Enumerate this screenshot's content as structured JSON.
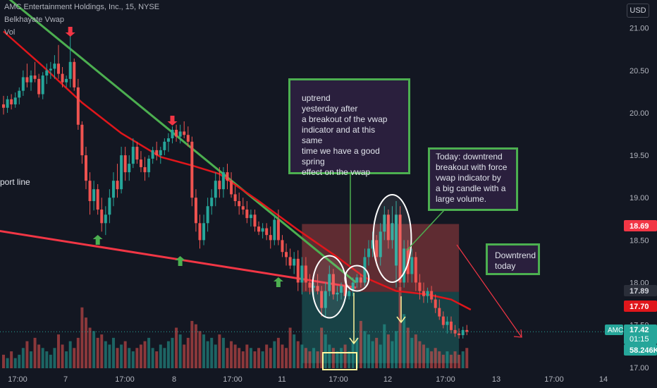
{
  "header": {
    "title": "AMC Entertainment Holdings, Inc., 15, NYSE",
    "indicator_1": "Belkhayate Vwap",
    "indicator_2": "Vol",
    "currency": "USD"
  },
  "annotations": {
    "support_label": "port line",
    "note_uptrend": "uptrend\nyesterday after\na breakout of the vwap\nindicator and at this same\ntime we have a good spring\neffect on the vwap",
    "note_today": "Today: downtrend\nbreakout with force\nvwap indicator by\na big candle with a\nlarge volume.",
    "note_downtrend": "Downtrend\ntoday"
  },
  "price_tags": {
    "target": "18.69",
    "entry": "17.89",
    "vwap": "17.70",
    "symbol": "AMC",
    "last": "17.42",
    "countdown": "01:15",
    "volume": "58.246K"
  },
  "colors": {
    "up": "#26a69a",
    "down": "#ef5350",
    "vwap": "#e0161b",
    "trendline_green": "#4caf50",
    "support_red": "#f23645",
    "note_border": "#4caf50"
  },
  "chart_data": {
    "type": "candlestick",
    "title": "AMC Entertainment Holdings, Inc., 15, NYSE",
    "y_ticks": [
      21.0,
      20.5,
      20.0,
      19.5,
      19.0,
      18.5,
      18.0,
      17.5,
      17.0
    ],
    "ylim": [
      16.94,
      21.33
    ],
    "x_tick_labels": [
      "17:00",
      "7",
      "17:00",
      "8",
      "17:00",
      "11",
      "17:00",
      "12",
      "17:00",
      "13",
      "17:00",
      "14"
    ],
    "grid": false,
    "candles": [
      {
        "o": 20.1,
        "h": 20.2,
        "l": 19.98,
        "c": 20.06
      },
      {
        "o": 20.06,
        "h": 20.2,
        "l": 20.0,
        "c": 20.16
      },
      {
        "o": 20.16,
        "h": 20.22,
        "l": 20.04,
        "c": 20.1
      },
      {
        "o": 20.1,
        "h": 20.24,
        "l": 20.06,
        "c": 20.18
      },
      {
        "o": 20.18,
        "h": 20.3,
        "l": 20.1,
        "c": 20.26
      },
      {
        "o": 20.26,
        "h": 20.5,
        "l": 20.2,
        "c": 20.42
      },
      {
        "o": 20.42,
        "h": 20.58,
        "l": 20.3,
        "c": 20.36
      },
      {
        "o": 20.36,
        "h": 20.5,
        "l": 20.26,
        "c": 20.44
      },
      {
        "o": 20.44,
        "h": 20.6,
        "l": 20.36,
        "c": 20.4
      },
      {
        "o": 20.4,
        "h": 20.46,
        "l": 20.18,
        "c": 20.22
      },
      {
        "o": 20.22,
        "h": 20.48,
        "l": 20.16,
        "c": 20.44
      },
      {
        "o": 20.44,
        "h": 20.58,
        "l": 20.34,
        "c": 20.5
      },
      {
        "o": 20.5,
        "h": 20.6,
        "l": 20.4,
        "c": 20.52
      },
      {
        "o": 20.52,
        "h": 20.68,
        "l": 20.4,
        "c": 20.58
      },
      {
        "o": 20.58,
        "h": 20.8,
        "l": 20.4,
        "c": 20.46
      },
      {
        "o": 20.46,
        "h": 20.54,
        "l": 20.3,
        "c": 20.36
      },
      {
        "o": 20.36,
        "h": 20.44,
        "l": 20.3,
        "c": 20.4
      },
      {
        "o": 20.4,
        "h": 20.94,
        "l": 20.3,
        "c": 20.6
      },
      {
        "o": 20.6,
        "h": 20.64,
        "l": 20.26,
        "c": 20.3
      },
      {
        "o": 20.3,
        "h": 20.4,
        "l": 19.8,
        "c": 19.86
      },
      {
        "o": 19.86,
        "h": 19.9,
        "l": 19.4,
        "c": 19.5
      },
      {
        "o": 19.5,
        "h": 19.6,
        "l": 19.1,
        "c": 19.2
      },
      {
        "o": 19.2,
        "h": 19.3,
        "l": 18.8,
        "c": 18.96
      },
      {
        "o": 18.96,
        "h": 19.2,
        "l": 18.85,
        "c": 19.1
      },
      {
        "o": 19.1,
        "h": 19.16,
        "l": 18.8,
        "c": 18.86
      },
      {
        "o": 18.86,
        "h": 19.0,
        "l": 18.6,
        "c": 18.7
      },
      {
        "o": 18.7,
        "h": 18.9,
        "l": 18.56,
        "c": 18.8
      },
      {
        "o": 18.8,
        "h": 19.1,
        "l": 18.7,
        "c": 19.0
      },
      {
        "o": 19.0,
        "h": 19.3,
        "l": 18.9,
        "c": 19.2
      },
      {
        "o": 19.2,
        "h": 19.4,
        "l": 19.0,
        "c": 19.1
      },
      {
        "o": 19.1,
        "h": 19.6,
        "l": 19.05,
        "c": 19.5
      },
      {
        "o": 19.5,
        "h": 19.6,
        "l": 19.2,
        "c": 19.3
      },
      {
        "o": 19.3,
        "h": 19.5,
        "l": 19.2,
        "c": 19.4
      },
      {
        "o": 19.4,
        "h": 19.7,
        "l": 19.35,
        "c": 19.6
      },
      {
        "o": 19.6,
        "h": 19.66,
        "l": 19.4,
        "c": 19.45
      },
      {
        "o": 19.45,
        "h": 19.55,
        "l": 19.3,
        "c": 19.36
      },
      {
        "o": 19.36,
        "h": 19.48,
        "l": 19.2,
        "c": 19.3
      },
      {
        "o": 19.3,
        "h": 19.5,
        "l": 19.24,
        "c": 19.46
      },
      {
        "o": 19.46,
        "h": 19.6,
        "l": 19.4,
        "c": 19.56
      },
      {
        "o": 19.56,
        "h": 19.66,
        "l": 19.44,
        "c": 19.5
      },
      {
        "o": 19.5,
        "h": 19.6,
        "l": 19.4,
        "c": 19.56
      },
      {
        "o": 19.56,
        "h": 19.7,
        "l": 19.5,
        "c": 19.66
      },
      {
        "o": 19.66,
        "h": 19.76,
        "l": 19.54,
        "c": 19.7
      },
      {
        "o": 19.7,
        "h": 19.84,
        "l": 19.64,
        "c": 19.8
      },
      {
        "o": 19.8,
        "h": 19.86,
        "l": 19.66,
        "c": 19.72
      },
      {
        "o": 19.72,
        "h": 19.86,
        "l": 19.64,
        "c": 19.78
      },
      {
        "o": 19.78,
        "h": 19.9,
        "l": 19.7,
        "c": 19.74
      },
      {
        "o": 19.74,
        "h": 19.84,
        "l": 19.6,
        "c": 19.66
      },
      {
        "o": 19.66,
        "h": 19.72,
        "l": 18.9,
        "c": 19.0
      },
      {
        "o": 19.0,
        "h": 19.1,
        "l": 18.6,
        "c": 18.7
      },
      {
        "o": 18.7,
        "h": 18.8,
        "l": 18.4,
        "c": 18.5
      },
      {
        "o": 18.5,
        "h": 18.8,
        "l": 18.44,
        "c": 18.7
      },
      {
        "o": 18.7,
        "h": 19.0,
        "l": 18.6,
        "c": 18.9
      },
      {
        "o": 18.9,
        "h": 19.1,
        "l": 18.8,
        "c": 19.0
      },
      {
        "o": 19.0,
        "h": 19.3,
        "l": 18.9,
        "c": 19.2
      },
      {
        "o": 19.2,
        "h": 19.36,
        "l": 19.0,
        "c": 19.1
      },
      {
        "o": 19.1,
        "h": 19.36,
        "l": 19.0,
        "c": 19.3
      },
      {
        "o": 19.3,
        "h": 19.4,
        "l": 19.1,
        "c": 19.2
      },
      {
        "o": 19.2,
        "h": 19.3,
        "l": 19.0,
        "c": 19.04
      },
      {
        "o": 19.04,
        "h": 19.14,
        "l": 18.9,
        "c": 18.96
      },
      {
        "o": 18.96,
        "h": 19.06,
        "l": 18.8,
        "c": 18.9
      },
      {
        "o": 18.9,
        "h": 19.0,
        "l": 18.8,
        "c": 18.86
      },
      {
        "o": 18.86,
        "h": 18.96,
        "l": 18.7,
        "c": 18.76
      },
      {
        "o": 18.76,
        "h": 18.86,
        "l": 18.66,
        "c": 18.8
      },
      {
        "o": 18.8,
        "h": 18.86,
        "l": 18.6,
        "c": 18.66
      },
      {
        "o": 18.66,
        "h": 18.72,
        "l": 18.56,
        "c": 18.6
      },
      {
        "o": 18.6,
        "h": 18.7,
        "l": 18.52,
        "c": 18.64
      },
      {
        "o": 18.64,
        "h": 18.7,
        "l": 18.5,
        "c": 18.56
      },
      {
        "o": 18.56,
        "h": 18.66,
        "l": 18.4,
        "c": 18.5
      },
      {
        "o": 18.5,
        "h": 18.8,
        "l": 18.44,
        "c": 18.74
      },
      {
        "o": 18.74,
        "h": 18.86,
        "l": 18.44,
        "c": 18.5
      },
      {
        "o": 18.5,
        "h": 18.56,
        "l": 18.3,
        "c": 18.36
      },
      {
        "o": 18.36,
        "h": 18.46,
        "l": 18.2,
        "c": 18.3
      },
      {
        "o": 18.3,
        "h": 18.4,
        "l": 18.16,
        "c": 18.2
      },
      {
        "o": 18.2,
        "h": 18.36,
        "l": 18.1,
        "c": 18.28
      },
      {
        "o": 18.28,
        "h": 18.38,
        "l": 17.9,
        "c": 18.0
      },
      {
        "o": 18.0,
        "h": 18.3,
        "l": 17.86,
        "c": 18.2
      },
      {
        "o": 18.2,
        "h": 18.3,
        "l": 17.9,
        "c": 18.0
      },
      {
        "o": 18.0,
        "h": 18.1,
        "l": 17.86,
        "c": 17.94
      },
      {
        "o": 17.94,
        "h": 18.0,
        "l": 17.84,
        "c": 17.96
      },
      {
        "o": 17.96,
        "h": 18.1,
        "l": 17.86,
        "c": 17.9
      },
      {
        "o": 17.9,
        "h": 17.96,
        "l": 17.6,
        "c": 17.7
      },
      {
        "o": 17.7,
        "h": 18.0,
        "l": 17.6,
        "c": 17.9
      },
      {
        "o": 17.9,
        "h": 18.2,
        "l": 17.84,
        "c": 18.1
      },
      {
        "o": 18.1,
        "h": 18.16,
        "l": 17.8,
        "c": 17.86
      },
      {
        "o": 17.86,
        "h": 17.96,
        "l": 17.78,
        "c": 17.88
      },
      {
        "o": 17.88,
        "h": 18.0,
        "l": 17.8,
        "c": 17.96
      },
      {
        "o": 17.96,
        "h": 18.0,
        "l": 17.8,
        "c": 17.84
      },
      {
        "o": 17.84,
        "h": 17.96,
        "l": 17.8,
        "c": 17.9
      },
      {
        "o": 17.9,
        "h": 18.06,
        "l": 17.84,
        "c": 18.0
      },
      {
        "o": 18.0,
        "h": 18.1,
        "l": 17.94,
        "c": 18.06
      },
      {
        "o": 18.06,
        "h": 18.1,
        "l": 17.94,
        "c": 18.0
      },
      {
        "o": 18.0,
        "h": 18.4,
        "l": 17.96,
        "c": 18.3
      },
      {
        "o": 18.3,
        "h": 18.5,
        "l": 18.2,
        "c": 18.4
      },
      {
        "o": 18.4,
        "h": 18.6,
        "l": 18.3,
        "c": 18.5
      },
      {
        "o": 18.5,
        "h": 18.56,
        "l": 18.2,
        "c": 18.3
      },
      {
        "o": 18.3,
        "h": 18.7,
        "l": 18.2,
        "c": 18.6
      },
      {
        "o": 18.6,
        "h": 18.9,
        "l": 18.5,
        "c": 18.8
      },
      {
        "o": 18.8,
        "h": 18.86,
        "l": 18.4,
        "c": 18.5
      },
      {
        "o": 18.5,
        "h": 18.9,
        "l": 18.4,
        "c": 18.7
      },
      {
        "o": 18.2,
        "h": 18.96,
        "l": 17.94,
        "c": 18.8
      },
      {
        "o": 18.8,
        "h": 18.9,
        "l": 17.9,
        "c": 18.0
      },
      {
        "o": 18.0,
        "h": 18.5,
        "l": 17.94,
        "c": 18.4
      },
      {
        "o": 18.4,
        "h": 18.5,
        "l": 18.0,
        "c": 18.1
      },
      {
        "o": 18.1,
        "h": 18.4,
        "l": 18.0,
        "c": 18.3
      },
      {
        "o": 18.3,
        "h": 18.36,
        "l": 17.9,
        "c": 18.0
      },
      {
        "o": 18.0,
        "h": 18.1,
        "l": 17.8,
        "c": 17.9
      },
      {
        "o": 17.9,
        "h": 18.0,
        "l": 17.76,
        "c": 17.84
      },
      {
        "o": 17.84,
        "h": 17.94,
        "l": 17.76,
        "c": 17.9
      },
      {
        "o": 17.9,
        "h": 17.96,
        "l": 17.76,
        "c": 17.8
      },
      {
        "o": 17.8,
        "h": 17.86,
        "l": 17.64,
        "c": 17.7
      },
      {
        "o": 17.7,
        "h": 17.8,
        "l": 17.56,
        "c": 17.6
      },
      {
        "o": 17.6,
        "h": 17.66,
        "l": 17.46,
        "c": 17.5
      },
      {
        "o": 17.5,
        "h": 17.6,
        "l": 17.4,
        "c": 17.54
      },
      {
        "o": 17.54,
        "h": 17.6,
        "l": 17.4,
        "c": 17.44
      },
      {
        "o": 17.44,
        "h": 17.5,
        "l": 17.36,
        "c": 17.4
      },
      {
        "o": 17.4,
        "h": 17.46,
        "l": 17.34,
        "c": 17.38
      },
      {
        "o": 17.38,
        "h": 17.48,
        "l": 17.34,
        "c": 17.44
      },
      {
        "o": 17.44,
        "h": 17.5,
        "l": 17.38,
        "c": 17.42
      }
    ],
    "volume_shown_as_bars": true,
    "vwap_line": [
      [
        0,
        20.96
      ],
      [
        10,
        20.55
      ],
      [
        20,
        20.12
      ],
      [
        30,
        19.76
      ],
      [
        40,
        19.48
      ],
      [
        48,
        19.38
      ],
      [
        55,
        19.28
      ],
      [
        65,
        18.96
      ],
      [
        75,
        18.62
      ],
      [
        85,
        18.3
      ],
      [
        92,
        18.06
      ],
      [
        100,
        17.9
      ],
      [
        108,
        17.86
      ],
      [
        114,
        17.8
      ],
      [
        119,
        17.68
      ]
    ],
    "lines": [
      {
        "name": "resistance trendline",
        "from": [
          0,
          21.6
        ],
        "to": [
          88,
          18.0
        ]
      },
      {
        "name": "support line",
        "from": [
          0,
          18.64
        ],
        "to": [
          88,
          17.94
        ]
      }
    ],
    "position_box": {
      "entry": 17.89,
      "target": 18.69,
      "stop": 17.05
    }
  }
}
